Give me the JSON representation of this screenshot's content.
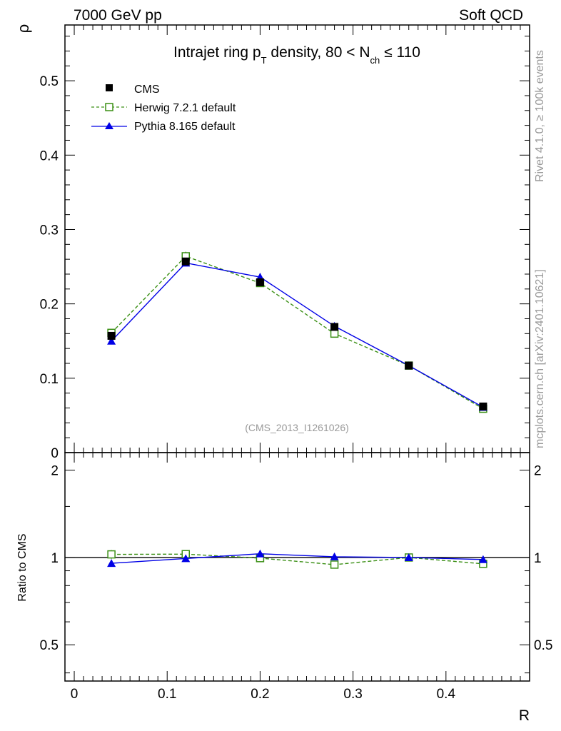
{
  "header": {
    "left": "7000 GeV pp",
    "right": "Soft QCD"
  },
  "side_labels": {
    "rivet": "Rivet 4.1.0, ≥ 100k events",
    "mcplots": "mcplots.cern.ch [arXiv:2401.10621]"
  },
  "colors": {
    "cms": "#000000",
    "herwig": "#3a8f14",
    "pythia": "#0000e6",
    "watermark": "#999999"
  },
  "chart_data": [
    {
      "id": "main",
      "type": "line",
      "title": {
        "main": "Intrajet ring p",
        "sub1": "T",
        "mid": " density, 80 < N",
        "sub2": "ch",
        "end": " ≤ 110"
      },
      "ylabel": "ρ",
      "xlabel": "R",
      "watermark": "(CMS_2013_I1261026)",
      "xlim": [
        -0.01,
        0.49
      ],
      "ylim": [
        0,
        0.575
      ],
      "yticks": [
        0.1,
        0.2,
        0.3,
        0.4,
        0.5
      ],
      "ytick_labels": [
        "0.1",
        "0.2",
        "0.3",
        "0.4",
        "0.5"
      ],
      "bottom_label": "0",
      "x": [
        0.04,
        0.12,
        0.2,
        0.28,
        0.36,
        0.44
      ],
      "series": [
        {
          "key": "cms",
          "name": "CMS",
          "values": [
            0.157,
            0.257,
            0.229,
            0.169,
            0.117,
            0.062
          ],
          "errors": [
            0.004,
            0.004,
            0.004,
            0.003,
            0.002,
            0.002
          ]
        },
        {
          "key": "herwig",
          "name": "Herwig 7.2.1 default",
          "values": [
            0.161,
            0.264,
            0.228,
            0.16,
            0.117,
            0.059
          ],
          "errors": [
            0.005,
            0.006,
            0.004,
            0.003,
            0.002,
            0.002
          ]
        },
        {
          "key": "pythia",
          "name": "Pythia 8.165 default",
          "values": [
            0.15,
            0.255,
            0.236,
            0.17,
            0.117,
            0.061
          ],
          "errors": [
            0.003,
            0.004,
            0.005,
            0.003,
            0.002,
            0.002
          ]
        }
      ]
    },
    {
      "id": "ratio",
      "type": "line",
      "ylabel": "Ratio to CMS",
      "xlim": [
        -0.01,
        0.49
      ],
      "ylim": [
        0.375,
        2.3
      ],
      "yticks": [
        0.5,
        1,
        2
      ],
      "ytick_labels": [
        "0.5",
        "1",
        "2"
      ],
      "xticks": [
        0,
        0.1,
        0.2,
        0.3,
        0.4
      ],
      "xtick_labels": [
        "0",
        "0.1",
        "0.2",
        "0.3",
        "0.4"
      ],
      "x": [
        0.04,
        0.12,
        0.2,
        0.28,
        0.36,
        0.44
      ],
      "series": [
        {
          "key": "herwig",
          "name": "Herwig 7.2.1 default",
          "values": [
            1.025,
            1.027,
            0.995,
            0.945,
            1.0,
            0.951
          ],
          "errors": [
            0.035,
            0.015,
            0.01,
            0.01,
            0.01,
            0.025
          ]
        },
        {
          "key": "pythia",
          "name": "Pythia 8.165 default",
          "values": [
            0.955,
            0.992,
            1.03,
            1.006,
            1.0,
            0.984
          ],
          "errors": [
            0.012,
            0.01,
            0.012,
            0.01,
            0.01,
            0.02
          ]
        }
      ]
    }
  ]
}
